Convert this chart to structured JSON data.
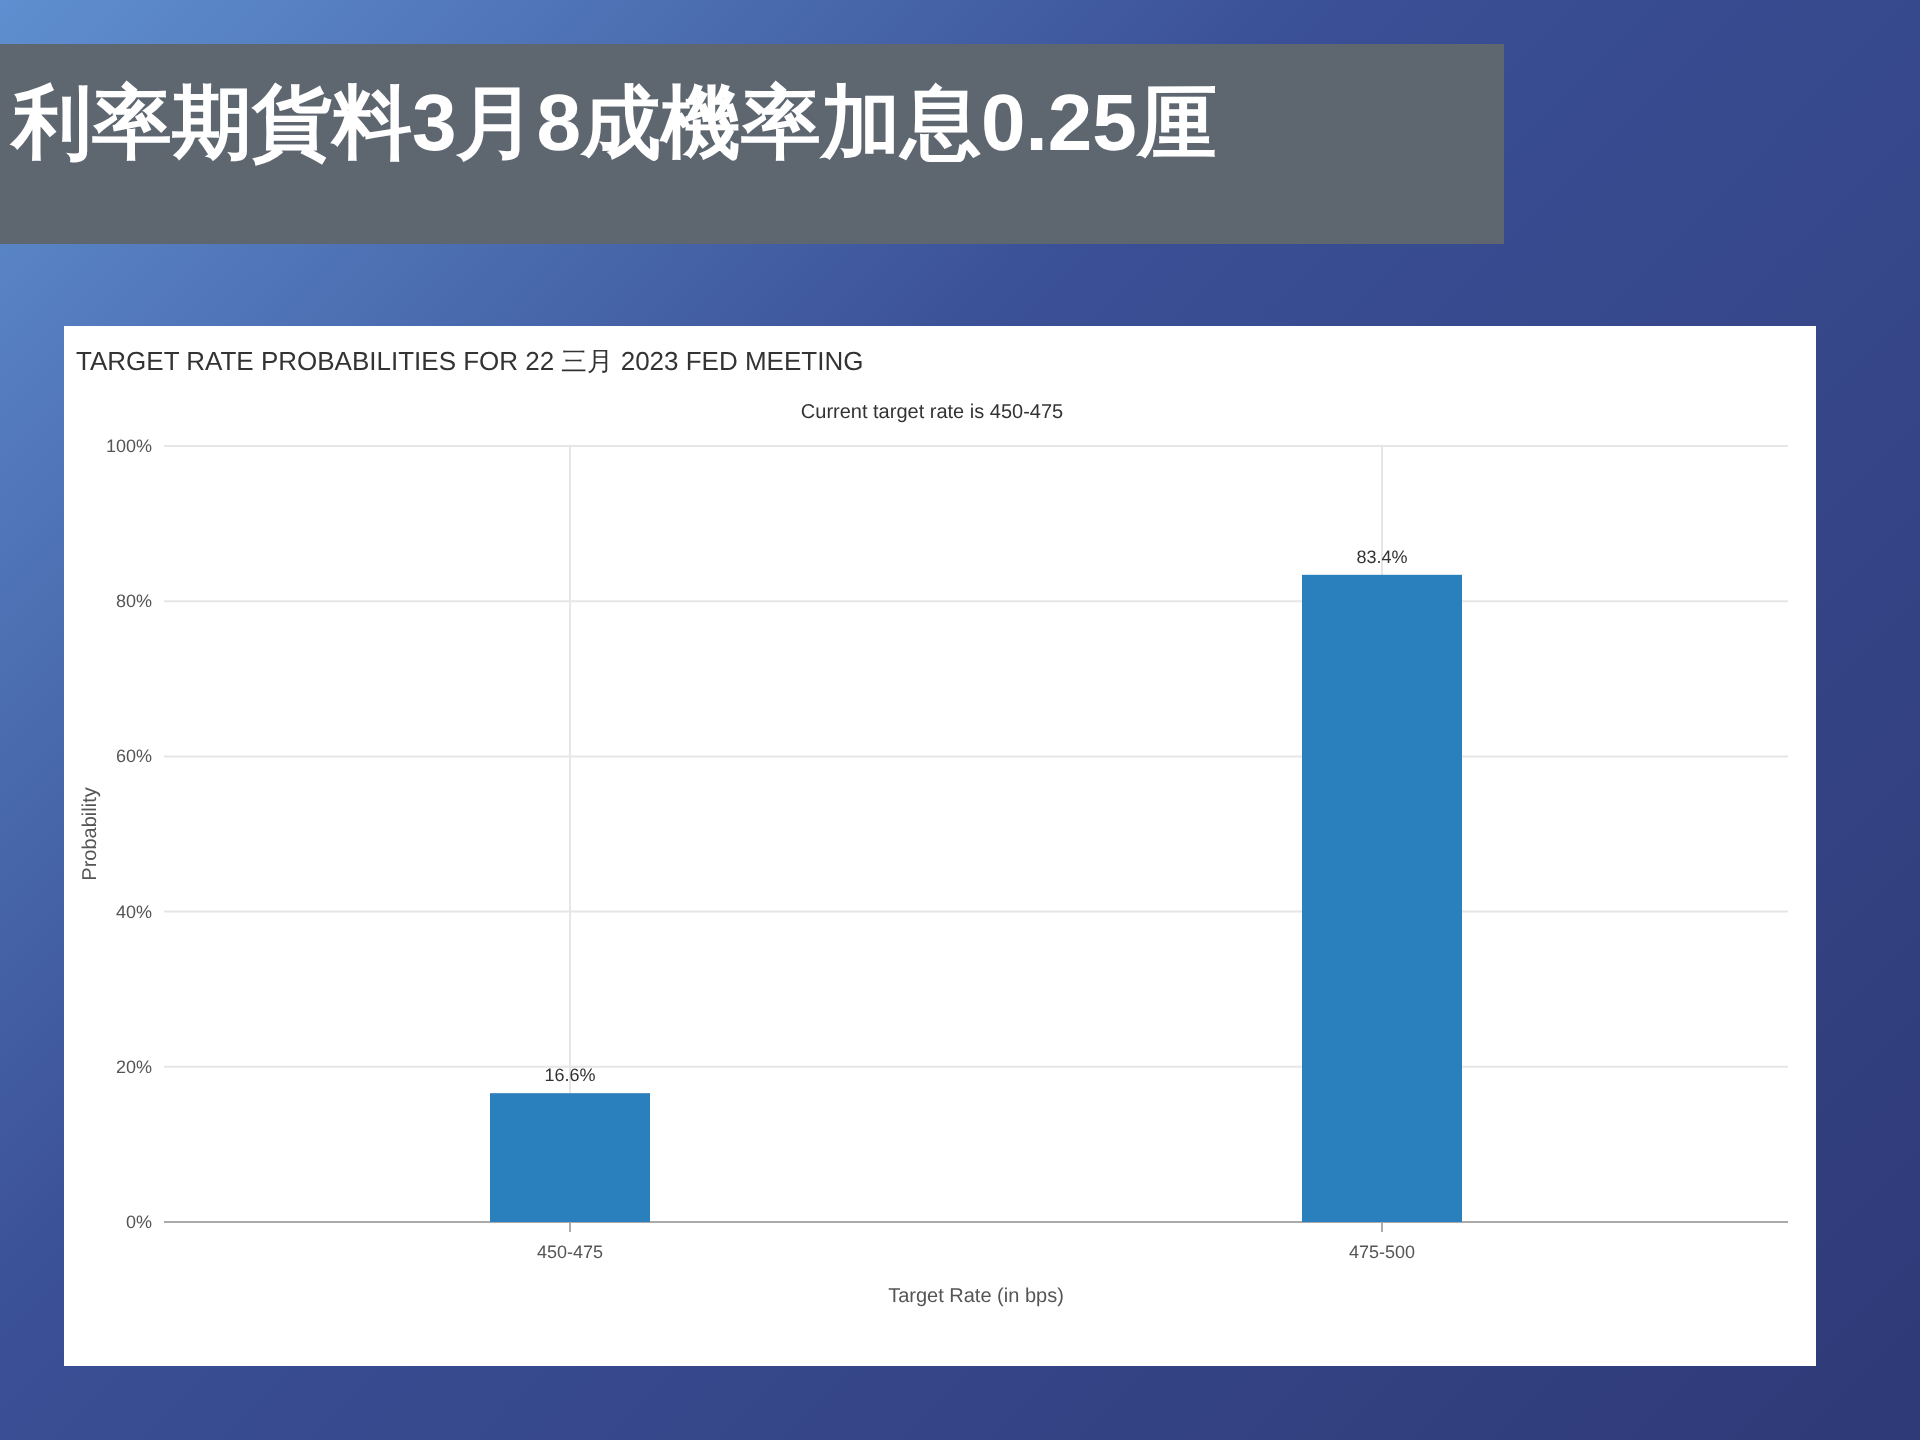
{
  "chart_data": {
    "type": "bar",
    "title": "利率期貨料3月8成機率加息0.25厘",
    "subtitle": "TARGET RATE PROBABILITIES FOR 22 三月 2023 FED MEETING",
    "annotations": [
      "Current target rate is 450-475"
    ],
    "xlabel": "Target Rate (in bps)",
    "ylabel": "Probability",
    "categories": [
      "450-475",
      "475-500"
    ],
    "values": [
      16.6,
      83.4
    ],
    "value_labels": [
      "16.6%",
      "83.4%"
    ],
    "color": "#2a7fbd",
    "ylim": [
      0,
      100
    ],
    "yticks": [
      {
        "value": 0,
        "label": "0%"
      },
      {
        "value": 20,
        "label": "20%"
      },
      {
        "value": 40,
        "label": "40%"
      },
      {
        "value": 60,
        "label": "60%"
      },
      {
        "value": 80,
        "label": "80%"
      },
      {
        "value": 100,
        "label": "100%"
      }
    ],
    "grid": true
  }
}
